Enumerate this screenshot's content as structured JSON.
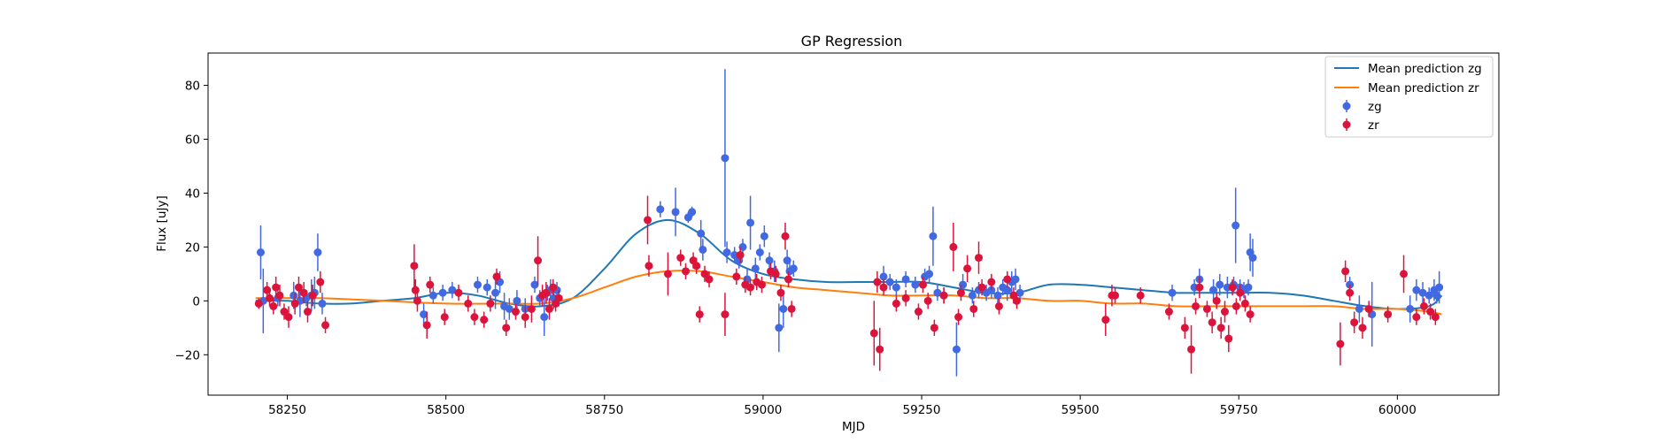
{
  "chart_data": {
    "type": "scatter",
    "title": "GP Regression",
    "xlabel": "MJD",
    "ylabel": "Flux [uJy]",
    "xlim": [
      58125,
      60160
    ],
    "ylim": [
      -35,
      92
    ],
    "xticks": [
      58250,
      58500,
      58750,
      59000,
      59250,
      59500,
      59750,
      60000
    ],
    "yticks": [
      -20,
      0,
      20,
      40,
      60,
      80
    ],
    "legend_position": "top-right",
    "colors": {
      "zg_line": "#1f77b4",
      "zr_line": "#ff7f0e",
      "zg_points": "#4169e1",
      "zr_points": "#dc143c"
    },
    "lines": [
      {
        "name": "Mean prediction zg",
        "x": [
          58200,
          58250,
          58300,
          58350,
          58400,
          58450,
          58500,
          58550,
          58600,
          58650,
          58700,
          58750,
          58800,
          58850,
          58900,
          58950,
          59000,
          59050,
          59100,
          59150,
          59200,
          59250,
          59300,
          59350,
          59400,
          59450,
          59500,
          59550,
          59600,
          59650,
          59700,
          59750,
          59800,
          59850,
          59900,
          59950,
          60000,
          60050,
          60070
        ],
        "y": [
          0,
          0,
          -1,
          -1,
          0,
          1,
          3,
          2,
          -1,
          -2,
          1,
          12,
          25,
          30,
          25,
          15,
          10,
          8,
          7,
          7,
          7,
          7,
          5,
          3,
          3,
          6,
          6,
          5,
          4,
          3,
          3,
          3,
          3,
          2,
          0,
          -2,
          -3,
          -2,
          2
        ]
      },
      {
        "name": "Mean prediction zr",
        "x": [
          58200,
          58300,
          58400,
          58500,
          58600,
          58650,
          58700,
          58750,
          58800,
          58850,
          58900,
          58950,
          59000,
          59050,
          59100,
          59150,
          59200,
          59250,
          59300,
          59350,
          59400,
          59450,
          59500,
          59550,
          59600,
          59650,
          59700,
          59750,
          59800,
          59850,
          59900,
          59950,
          60000,
          60050,
          60070
        ],
        "y": [
          1,
          1,
          0,
          -1,
          -1,
          -1,
          1,
          5,
          9,
          11,
          11,
          9,
          7,
          5,
          4,
          3,
          2,
          2,
          2,
          1,
          1,
          0,
          0,
          -1,
          -1,
          -2,
          -2,
          -2,
          -2,
          -2,
          -2,
          -3,
          -3,
          -4,
          -5
        ]
      }
    ],
    "series": [
      {
        "name": "zg",
        "x": [
          58208,
          58212,
          58235,
          58260,
          58270,
          58280,
          58288,
          58293,
          58298,
          58305,
          58465,
          58480,
          58495,
          58510,
          58550,
          58565,
          58578,
          58585,
          58592,
          58600,
          58612,
          58625,
          58640,
          58648,
          58655,
          58660,
          58665,
          58670,
          58675,
          58838,
          58862,
          58882,
          58888,
          58902,
          58905,
          58940,
          58943,
          58955,
          58962,
          58968,
          58975,
          58980,
          58988,
          58995,
          59002,
          59010,
          59018,
          59025,
          59032,
          59038,
          59042,
          59048,
          59190,
          59200,
          59210,
          59225,
          59240,
          59255,
          59262,
          59268,
          59275,
          59285,
          59305,
          59315,
          59330,
          59340,
          59352,
          59360,
          59370,
          59378,
          59385,
          59392,
          59398,
          59405,
          59645,
          59680,
          59688,
          59710,
          59720,
          59732,
          59742,
          59745,
          59752,
          59758,
          59765,
          59768,
          59772,
          59925,
          59940,
          59960,
          60020,
          60030,
          60040,
          60050,
          60058,
          60062,
          60066
        ],
        "y": [
          18,
          0,
          1,
          2,
          0,
          1,
          2,
          3,
          18,
          -1,
          -5,
          2,
          3,
          4,
          6,
          5,
          3,
          7,
          -2,
          -3,
          0,
          -3,
          6,
          1,
          -6,
          3,
          4,
          1,
          4,
          34,
          33,
          31,
          33,
          25,
          19,
          53,
          18,
          17,
          15,
          20,
          8,
          29,
          12,
          18,
          24,
          15,
          11,
          -10,
          -3,
          15,
          11,
          12,
          9,
          7,
          5,
          8,
          6,
          9,
          10,
          24,
          3,
          2,
          -18,
          6,
          2,
          4,
          3,
          4,
          2,
          5,
          4,
          7,
          8,
          3,
          3,
          5,
          8,
          4,
          6,
          5,
          6,
          28,
          5,
          4,
          5,
          18,
          16,
          6,
          -3,
          -5,
          -3,
          4,
          3,
          2,
          4,
          2,
          5
        ],
        "err": [
          10,
          12,
          3,
          5,
          6,
          3,
          6,
          6,
          7,
          4,
          4,
          3,
          3,
          3,
          3,
          3,
          6,
          4,
          5,
          4,
          4,
          4,
          3,
          3,
          7,
          3,
          4,
          4,
          3,
          3,
          9,
          2,
          2,
          5,
          4,
          33,
          4,
          3,
          3,
          3,
          4,
          10,
          4,
          3,
          4,
          3,
          4,
          9,
          7,
          4,
          4,
          3,
          4,
          3,
          3,
          3,
          3,
          3,
          3,
          11,
          3,
          3,
          10,
          4,
          3,
          3,
          3,
          3,
          3,
          3,
          4,
          4,
          4,
          3,
          3,
          3,
          4,
          4,
          4,
          4,
          3,
          14,
          3,
          3,
          3,
          7,
          7,
          3,
          5,
          12,
          5,
          4,
          4,
          3,
          4,
          3,
          6
        ]
      },
      {
        "name": "zr",
        "x": [
          58205,
          58218,
          58222,
          58228,
          58232,
          58238,
          58245,
          58252,
          58262,
          58268,
          58276,
          58282,
          58290,
          58302,
          58310,
          58450,
          58452,
          58455,
          58470,
          58475,
          58498,
          58520,
          58535,
          58545,
          58560,
          58570,
          58580,
          58595,
          58610,
          58625,
          58635,
          58645,
          58652,
          58658,
          58663,
          58669,
          58673,
          58678,
          58818,
          58820,
          58850,
          58870,
          58878,
          58890,
          58895,
          58900,
          58908,
          58915,
          58940,
          58958,
          58964,
          58972,
          58980,
          58990,
          58998,
          59012,
          59020,
          59028,
          59035,
          59040,
          59045,
          59175,
          59180,
          59184,
          59190,
          59210,
          59225,
          59245,
          59252,
          59260,
          59270,
          59285,
          59300,
          59308,
          59312,
          59322,
          59332,
          59340,
          59345,
          59360,
          59372,
          59385,
          59395,
          59400,
          59540,
          59550,
          59555,
          59595,
          59640,
          59665,
          59675,
          59682,
          59688,
          59700,
          59708,
          59715,
          59722,
          59728,
          59734,
          59740,
          59746,
          59752,
          59760,
          59768,
          59910,
          59918,
          59925,
          59932,
          59945,
          59955,
          59985,
          60010,
          60030,
          60042,
          60052,
          60060
        ],
        "y": [
          -1,
          4,
          1,
          -2,
          5,
          2,
          -4,
          -6,
          -1,
          5,
          3,
          -4,
          2,
          7,
          -9,
          13,
          4,
          0,
          -9,
          6,
          -6,
          3,
          -1,
          -6,
          -7,
          -1,
          9,
          -10,
          -4,
          -6,
          -3,
          15,
          2,
          3,
          -3,
          5,
          -1,
          1,
          30,
          13,
          10,
          16,
          11,
          15,
          13,
          -5,
          10,
          8,
          -5,
          9,
          17,
          6,
          5,
          7,
          6,
          11,
          10,
          3,
          24,
          8,
          -3,
          -12,
          7,
          -18,
          5,
          -1,
          1,
          -4,
          6,
          0,
          -10,
          2,
          20,
          -6,
          3,
          12,
          -3,
          16,
          5,
          7,
          -2,
          8,
          2,
          0,
          -7,
          2,
          2,
          2,
          -4,
          -10,
          -18,
          -2,
          5,
          -3,
          -8,
          0,
          -10,
          -4,
          -14,
          5,
          -2,
          3,
          -1,
          -5,
          -16,
          11,
          3,
          -8,
          -10,
          -3,
          -5,
          10,
          -6,
          -2,
          -4,
          -6
        ],
        "err": [
          2,
          3,
          3,
          3,
          4,
          4,
          3,
          4,
          4,
          4,
          4,
          4,
          4,
          4,
          3,
          8,
          4,
          4,
          5,
          3,
          3,
          3,
          3,
          3,
          3,
          3,
          3,
          3,
          3,
          4,
          5,
          9,
          4,
          4,
          4,
          3,
          3,
          3,
          9,
          4,
          8,
          3,
          3,
          3,
          3,
          3,
          3,
          3,
          8,
          3,
          3,
          3,
          3,
          3,
          3,
          3,
          3,
          3,
          5,
          3,
          3,
          12,
          4,
          8,
          3,
          3,
          3,
          3,
          3,
          3,
          3,
          3,
          9,
          3,
          3,
          5,
          3,
          6,
          3,
          3,
          3,
          3,
          3,
          3,
          6,
          4,
          3,
          3,
          3,
          4,
          9,
          3,
          4,
          3,
          4,
          3,
          4,
          4,
          5,
          3,
          3,
          3,
          3,
          3,
          8,
          4,
          3,
          4,
          4,
          3,
          3,
          7,
          3,
          3,
          3,
          3
        ]
      }
    ]
  }
}
